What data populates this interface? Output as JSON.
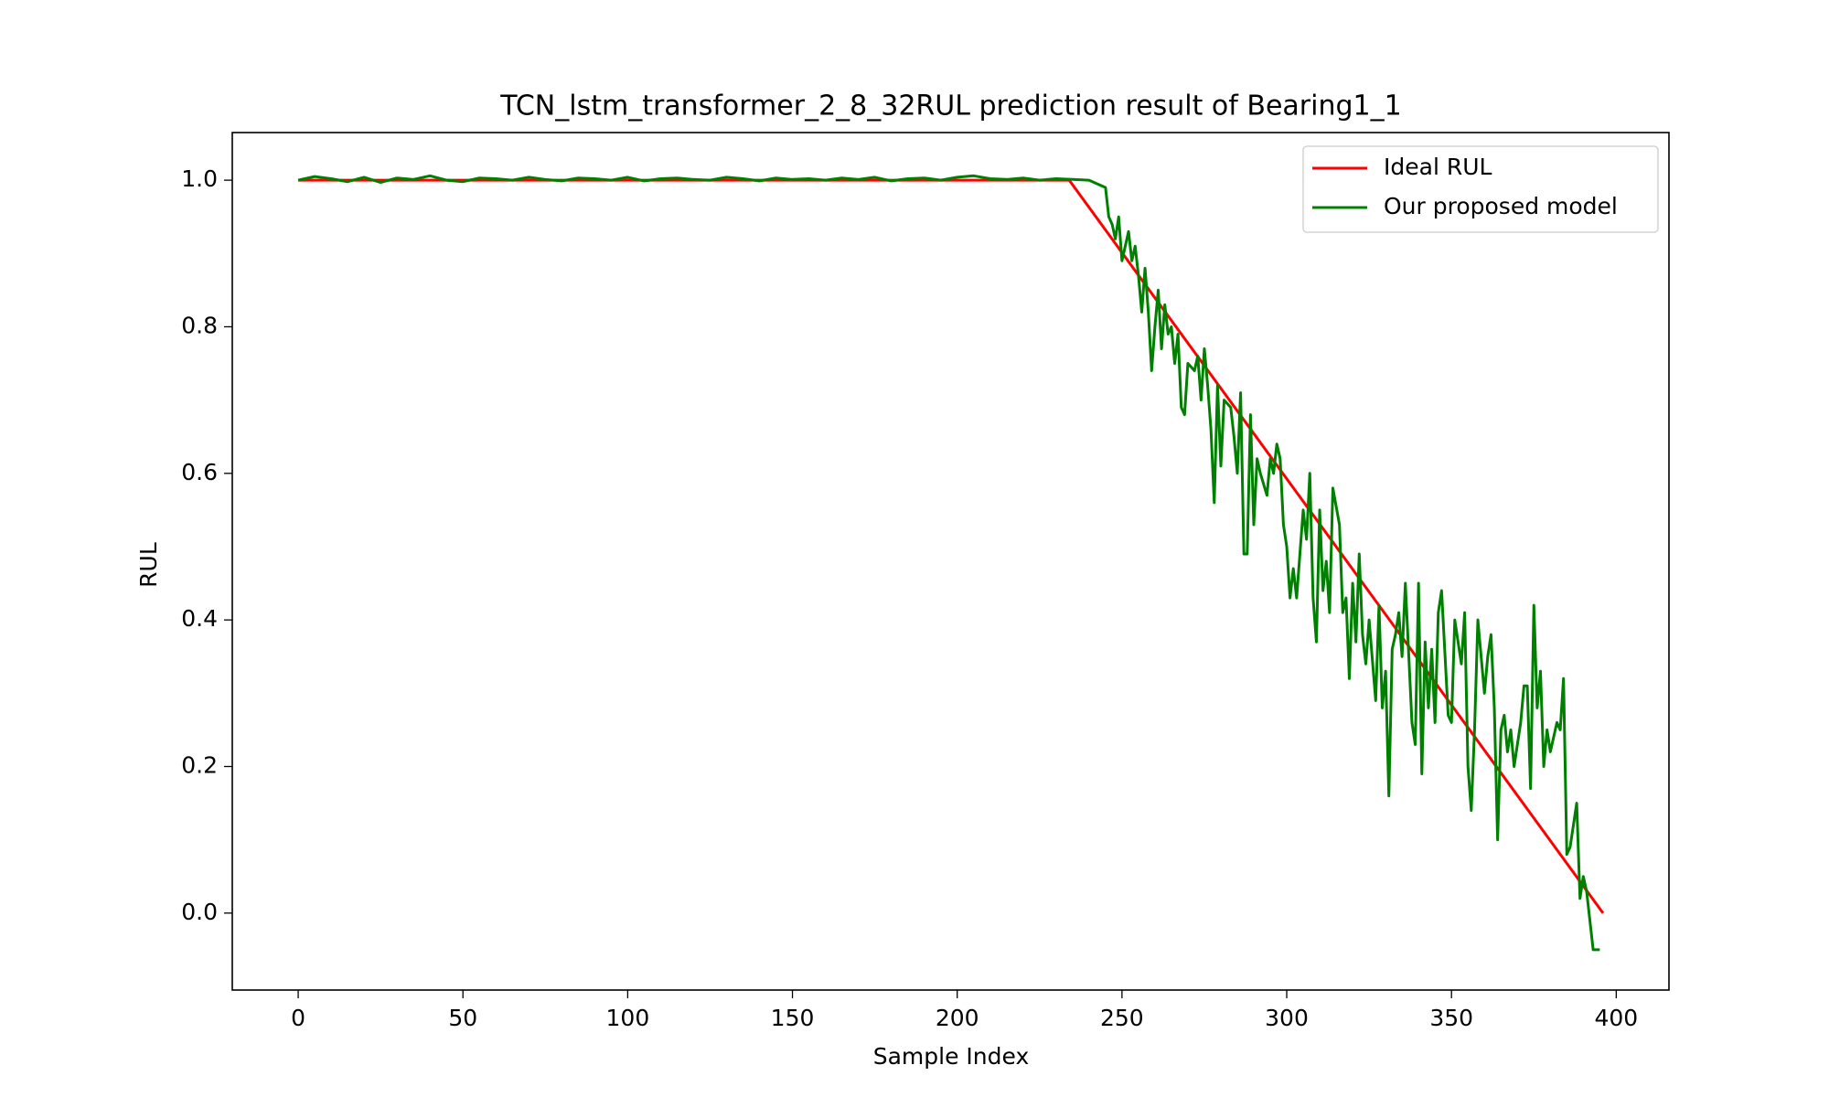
{
  "chart_data": {
    "type": "line",
    "title": "TCN_lstm_transformer_2_8_32RUL prediction result of Bearing1_1",
    "x_label": "Sample Index",
    "y_label": "RUL",
    "xlim": [
      -20,
      416
    ],
    "ylim": [
      -0.105,
      1.065
    ],
    "xticks": [
      0,
      50,
      100,
      150,
      200,
      250,
      300,
      350,
      400
    ],
    "yticks": [
      {
        "value": 0,
        "label": "0.0"
      },
      {
        "value": 0.2,
        "label": "0.2"
      },
      {
        "value": 0.4,
        "label": "0.4"
      },
      {
        "value": 0.6,
        "label": "0.6"
      },
      {
        "value": 0.8,
        "label": "0.8"
      },
      {
        "value": 1,
        "label": "1.0"
      }
    ],
    "legend": "upper right",
    "series": [
      {
        "name": "Ideal RUL",
        "color": "#ff0000",
        "x": [
          0,
          234,
          396
        ],
        "values": [
          1,
          1,
          0
        ]
      },
      {
        "name": "Our proposed model",
        "color": "#008000",
        "x": [
          0,
          5,
          10,
          15,
          20,
          25,
          30,
          35,
          40,
          45,
          50,
          55,
          60,
          65,
          70,
          75,
          80,
          85,
          90,
          95,
          100,
          105,
          110,
          115,
          120,
          125,
          130,
          135,
          140,
          145,
          150,
          155,
          160,
          165,
          170,
          175,
          180,
          185,
          190,
          195,
          200,
          205,
          210,
          215,
          220,
          225,
          230,
          235,
          240,
          245,
          246,
          247,
          248,
          249,
          250,
          251,
          252,
          253,
          254,
          255,
          256,
          257,
          258,
          259,
          260,
          261,
          262,
          263,
          264,
          265,
          266,
          267,
          268,
          269,
          270,
          272,
          273,
          274,
          275,
          276,
          277,
          278,
          279,
          280,
          281,
          283,
          284,
          285,
          286,
          287,
          288,
          289,
          290,
          291,
          292,
          294,
          295,
          296,
          297,
          298,
          299,
          300,
          301,
          302,
          303,
          305,
          306,
          307,
          308,
          309,
          310,
          311,
          312,
          313,
          314,
          316,
          317,
          318,
          319,
          320,
          321,
          322,
          323,
          324,
          325,
          327,
          328,
          329,
          330,
          331,
          332,
          333,
          334,
          335,
          336,
          338,
          339,
          340,
          341,
          342,
          343,
          344,
          345,
          346,
          347,
          349,
          350,
          351,
          352,
          353,
          354,
          355,
          356,
          357,
          358,
          360,
          361,
          362,
          363,
          364,
          365,
          366,
          367,
          368,
          369,
          371,
          372,
          373,
          374,
          375,
          376,
          377,
          378,
          379,
          380,
          382,
          383,
          384,
          385,
          386,
          387,
          388,
          389,
          390,
          391,
          393,
          395
        ],
        "values": [
          1.0,
          1.005,
          1.002,
          0.998,
          1.004,
          0.997,
          1.003,
          1.001,
          1.006,
          1.0,
          0.998,
          1.003,
          1.002,
          1.0,
          1.004,
          1.001,
          0.999,
          1.003,
          1.002,
          1.0,
          1.004,
          0.999,
          1.002,
          1.003,
          1.001,
          1.0,
          1.004,
          1.002,
          0.999,
          1.003,
          1.001,
          1.002,
          1.0,
          1.003,
          1.001,
          1.004,
          0.999,
          1.002,
          1.003,
          1.0,
          1.004,
          1.006,
          1.002,
          1.001,
          1.003,
          1.0,
          1.002,
          1.001,
          1.0,
          0.99,
          0.95,
          0.94,
          0.92,
          0.95,
          0.89,
          0.91,
          0.93,
          0.89,
          0.91,
          0.87,
          0.82,
          0.88,
          0.82,
          0.74,
          0.8,
          0.85,
          0.77,
          0.83,
          0.79,
          0.8,
          0.75,
          0.79,
          0.69,
          0.68,
          0.75,
          0.74,
          0.76,
          0.7,
          0.77,
          0.72,
          0.66,
          0.56,
          0.72,
          0.61,
          0.7,
          0.69,
          0.65,
          0.6,
          0.71,
          0.49,
          0.49,
          0.68,
          0.53,
          0.62,
          0.6,
          0.57,
          0.62,
          0.6,
          0.64,
          0.62,
          0.53,
          0.5,
          0.43,
          0.47,
          0.43,
          0.55,
          0.51,
          0.6,
          0.43,
          0.37,
          0.55,
          0.44,
          0.48,
          0.41,
          0.58,
          0.53,
          0.41,
          0.43,
          0.32,
          0.45,
          0.37,
          0.49,
          0.38,
          0.34,
          0.4,
          0.29,
          0.42,
          0.28,
          0.33,
          0.16,
          0.36,
          0.38,
          0.41,
          0.35,
          0.45,
          0.26,
          0.23,
          0.45,
          0.19,
          0.37,
          0.28,
          0.36,
          0.26,
          0.41,
          0.44,
          0.27,
          0.26,
          0.4,
          0.37,
          0.34,
          0.41,
          0.2,
          0.14,
          0.25,
          0.4,
          0.3,
          0.35,
          0.38,
          0.28,
          0.1,
          0.25,
          0.27,
          0.22,
          0.25,
          0.2,
          0.26,
          0.31,
          0.31,
          0.17,
          0.42,
          0.28,
          0.33,
          0.2,
          0.25,
          0.22,
          0.26,
          0.25,
          0.32,
          0.08,
          0.09,
          0.12,
          0.15,
          0.02,
          0.05,
          0.03,
          -0.05,
          -0.05
        ]
      }
    ]
  }
}
